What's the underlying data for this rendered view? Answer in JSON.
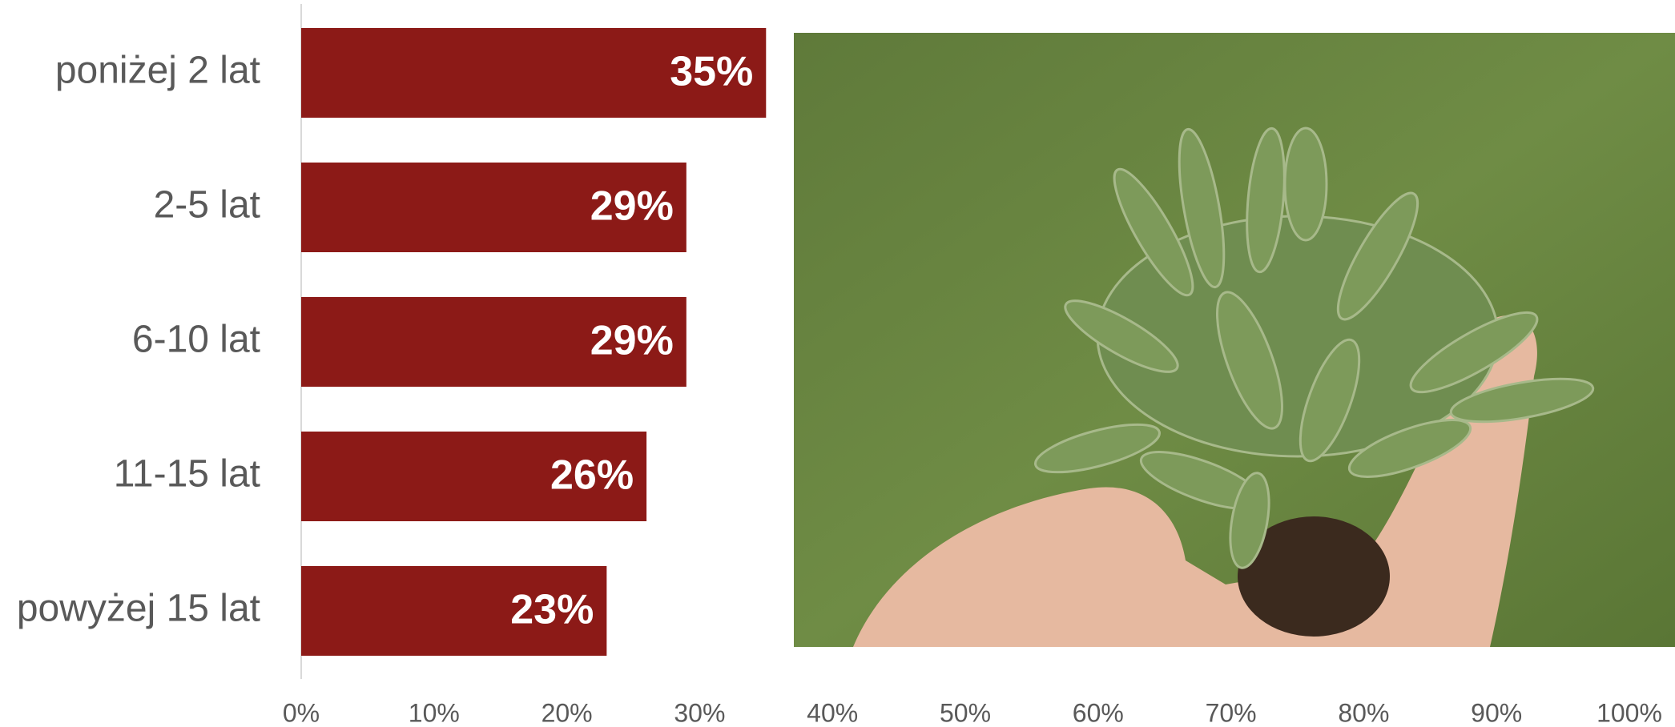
{
  "chart_data": {
    "type": "bar",
    "orientation": "horizontal",
    "categories": [
      "poniżej 2 lat",
      "2-5 lat",
      "6-10 lat",
      "11-15 lat",
      "powyżej 15 lat"
    ],
    "values": [
      35,
      29,
      29,
      26,
      23
    ],
    "value_labels": [
      "35%",
      "29%",
      "29%",
      "26%",
      "23%"
    ],
    "color": "#8c1a17",
    "xlim": [
      0,
      100
    ],
    "xticks": [
      {
        "value": 0,
        "label": "0%"
      },
      {
        "value": 10,
        "label": "10%"
      },
      {
        "value": 20,
        "label": "20%"
      },
      {
        "value": 30,
        "label": "30%"
      },
      {
        "value": 40,
        "label": "40%"
      },
      {
        "value": 50,
        "label": "50%"
      },
      {
        "value": 60,
        "label": "60%"
      },
      {
        "value": 70,
        "label": "70%"
      },
      {
        "value": 80,
        "label": "80%"
      },
      {
        "value": 90,
        "label": "90%"
      },
      {
        "value": 100,
        "label": "100%"
      }
    ],
    "grid": false
  }
}
